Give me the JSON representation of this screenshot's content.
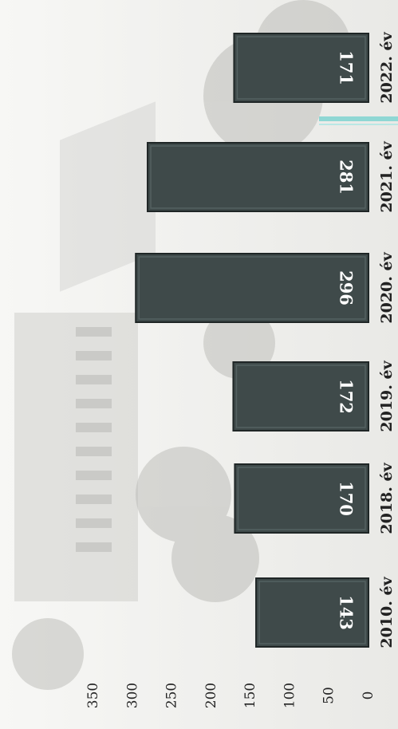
{
  "chart_data": {
    "type": "bar",
    "orientation": "horizontal",
    "rotated_image": true,
    "categories": [
      "2010. év",
      "2018. év",
      "2019. év",
      "2020. év",
      "2021. év",
      "2022. év"
    ],
    "values": [
      143,
      170,
      172,
      296,
      281,
      171
    ],
    "value_labels": [
      "143",
      "170",
      "172",
      "296",
      "281",
      "171"
    ],
    "title": "",
    "xlabel": "",
    "ylabel": "",
    "ylim": [
      0,
      350
    ],
    "ticks": [
      "0",
      "50",
      "100",
      "150",
      "200",
      "250",
      "300",
      "350"
    ],
    "grid": false,
    "legend": "none",
    "colors": {
      "bar_fill": "#3f4a4a",
      "bar_edge": "#1f2626",
      "label_text": "#ffffff",
      "axis_text": "#222222",
      "background": "#f4f4f2",
      "photo_tint": "#c9c9c6",
      "accent_line": "#7fd3d0"
    }
  }
}
